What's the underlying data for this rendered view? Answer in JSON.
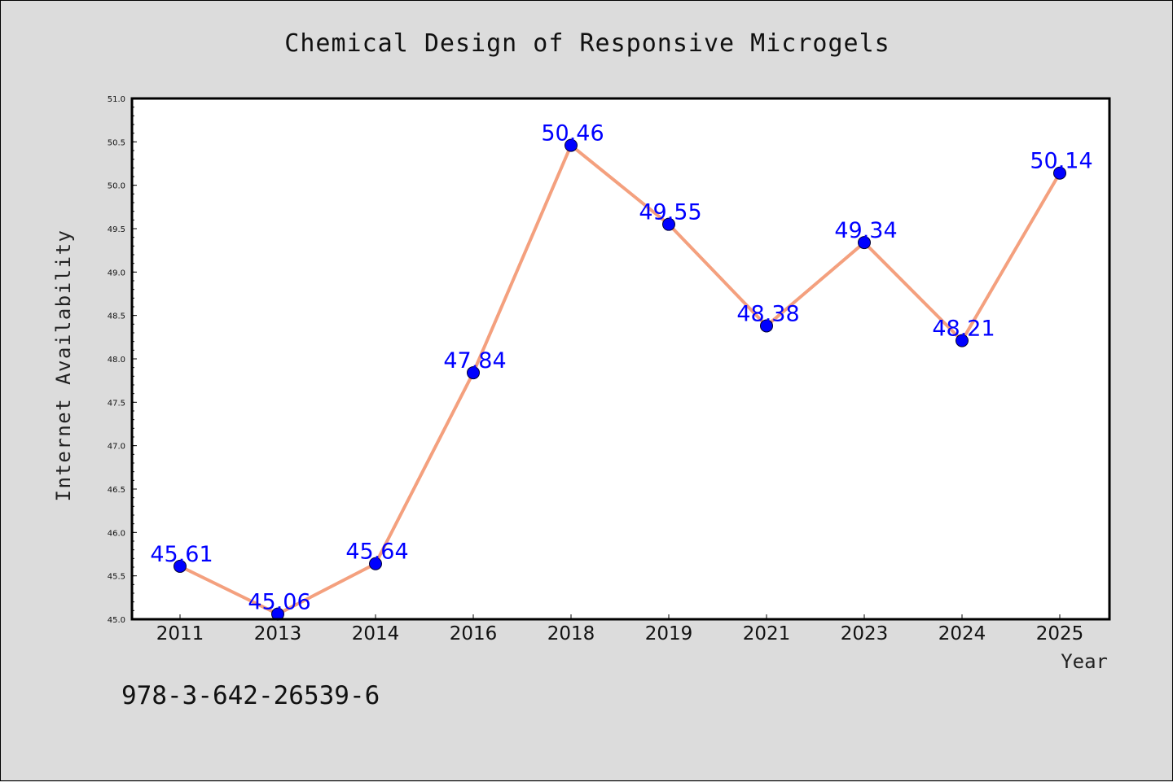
{
  "chart_data": {
    "type": "line",
    "title": "Chemical Design of Responsive Microgels",
    "xlabel": "Year",
    "ylabel": "Internet Availability",
    "categories": [
      "2011",
      "2013",
      "2014",
      "2016",
      "2018",
      "2019",
      "2021",
      "2023",
      "2024",
      "2025"
    ],
    "values": [
      45.61,
      45.06,
      45.64,
      47.84,
      50.46,
      49.55,
      48.38,
      49.34,
      48.21,
      50.14
    ],
    "data_labels": [
      "45.61",
      "45.06",
      "45.64",
      "47.84",
      "50.46",
      "49.55",
      "48.38",
      "49.34",
      "48.21",
      "50.14"
    ],
    "ylim": [
      45.0,
      51.0
    ],
    "yticks": [
      "45.0",
      "45.5",
      "46.0",
      "46.5",
      "47.0",
      "47.5",
      "48.0",
      "48.5",
      "49.0",
      "49.5",
      "50.0",
      "50.5",
      "51.0"
    ],
    "grid": false,
    "legend": "none",
    "line_color": "#f4a07e",
    "marker_color": "#0000ff",
    "plot_background": "#ffffff"
  },
  "footer": {
    "isbn": "978-3-642-26539-6"
  }
}
